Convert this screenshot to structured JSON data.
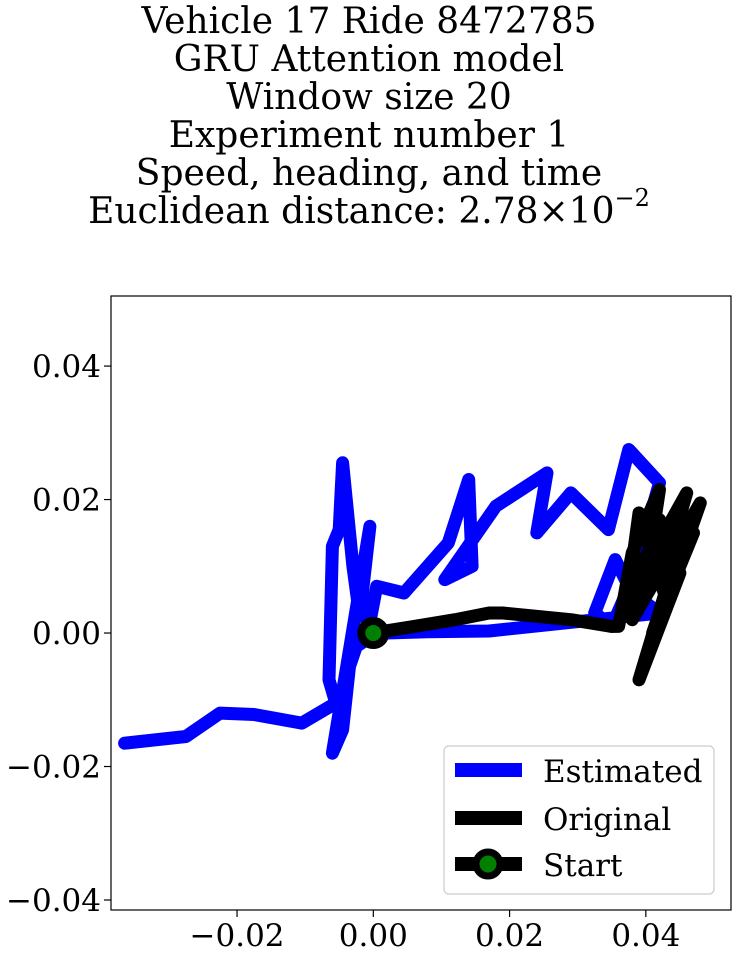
{
  "chart_data": {
    "type": "line",
    "title_lines": [
      "Vehicle 17 Ride 8472785",
      "GRU Attention model",
      "Window size 20",
      "Experiment number 1",
      "Speed, heading, and time"
    ],
    "title_distance_prefix": "Euclidean distance: ",
    "title_distance_mantissa": "2.78",
    "title_distance_times": "×",
    "title_distance_base": "10",
    "title_distance_exponent": "−2",
    "xlim": [
      -0.0385,
      0.0525
    ],
    "ylim": [
      -0.0415,
      0.0505
    ],
    "x_ticks": [
      -0.02,
      0.0,
      0.02,
      0.04
    ],
    "x_tick_labels": [
      "−0.02",
      "0.00",
      "0.02",
      "0.04"
    ],
    "y_ticks": [
      0.04,
      0.02,
      0.0,
      -0.02,
      -0.04
    ],
    "y_tick_labels": [
      "0.04",
      "0.02",
      "0.00",
      "−0.02",
      "−0.04"
    ],
    "grid": false,
    "legend_position": "lower right",
    "series": [
      {
        "name": "Estimated",
        "color": "#0000ff",
        "x": [
          -0.0365,
          -0.0275,
          -0.0225,
          -0.0175,
          -0.0105,
          -0.0055,
          -0.0065,
          -0.006,
          -0.005,
          -0.0045,
          -0.003,
          -0.002,
          -0.0005,
          -0.006,
          -0.0045,
          -0.0035,
          -0.0025,
          -0.001,
          0.0005,
          0.0045,
          0.011,
          0.014,
          0.0145,
          0.0105,
          0.018,
          0.0255,
          0.024,
          0.029,
          0.0345,
          0.0375,
          0.042,
          0.038,
          0.035,
          0.0325,
          0.0355,
          0.038,
          0.04,
          0.042,
          0.017,
          0.008,
          0.002
        ],
        "y": [
          -0.0165,
          -0.0155,
          -0.012,
          -0.0122,
          -0.0135,
          -0.0105,
          -0.007,
          0.013,
          0.0155,
          0.0255,
          0.01,
          0.0025,
          0.016,
          -0.018,
          -0.0145,
          -0.005,
          -0.002,
          -0.001,
          0.007,
          0.006,
          0.0135,
          0.023,
          0.01,
          0.008,
          0.019,
          0.024,
          0.015,
          0.021,
          0.0155,
          0.0275,
          0.0225,
          0.008,
          0.001,
          0.003,
          0.011,
          0.006,
          0.0045,
          0.003,
          0.0003,
          0.0002,
          0.0
        ]
      },
      {
        "name": "Original",
        "color": "#000000",
        "x": [
          0.0,
          0.006,
          0.012,
          0.017,
          0.019,
          0.029,
          0.035,
          0.036,
          0.038,
          0.042,
          0.04,
          0.044,
          0.046,
          0.04,
          0.038,
          0.048,
          0.043,
          0.039,
          0.037,
          0.042,
          0.044,
          0.041,
          0.047,
          0.044,
          0.039,
          0.045,
          0.043
        ],
        "y": [
          0.0,
          0.001,
          0.002,
          0.003,
          0.003,
          0.002,
          0.001,
          0.001,
          0.012,
          0.0215,
          0.008,
          0.014,
          0.021,
          0.01,
          0.002,
          0.0195,
          0.005,
          0.018,
          0.003,
          0.017,
          0.009,
          0.0,
          0.015,
          0.01,
          -0.007,
          0.009,
          0.004
        ]
      },
      {
        "name": "Start",
        "color": "#000000",
        "marker_face_color": "#008000",
        "x": [
          0.0
        ],
        "y": [
          0.0
        ]
      }
    ],
    "legend": [
      "Estimated",
      "Original",
      "Start"
    ]
  }
}
